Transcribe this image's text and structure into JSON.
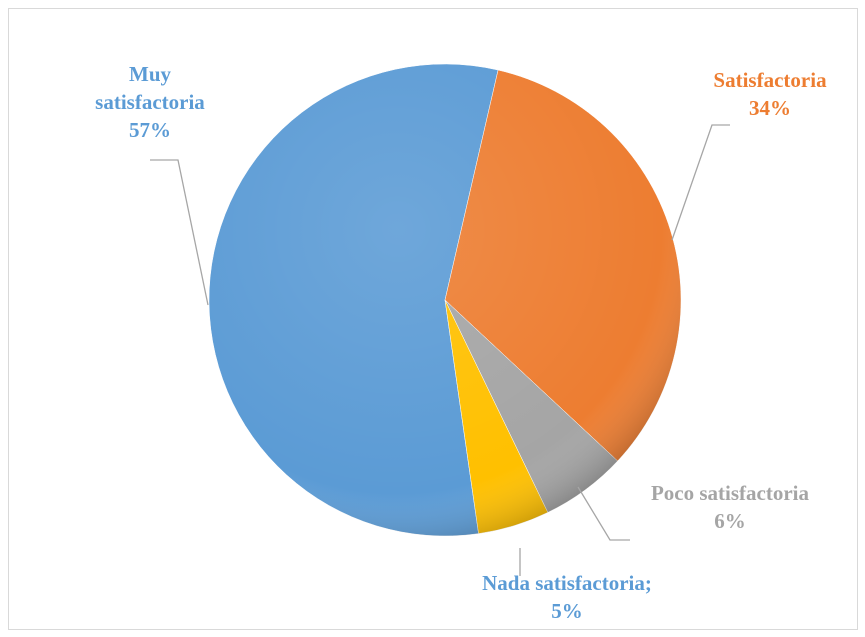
{
  "chart_data": {
    "type": "pie",
    "categories": [
      "Muy satisfactoria",
      "Satisfactoria",
      "Poco satisfactoria",
      "Nada satisfactoria;"
    ],
    "values": [
      57,
      34,
      6,
      5
    ],
    "value_labels": [
      "57%",
      "34%",
      "6%",
      "5%"
    ],
    "colors": [
      "#5b9bd5",
      "#ed7d31",
      "#a5a5a5",
      "#ffc000"
    ],
    "label_colors": [
      "#5b9bd5",
      "#ed7d31",
      "#a5a5a5",
      "#5b9bd5"
    ]
  }
}
